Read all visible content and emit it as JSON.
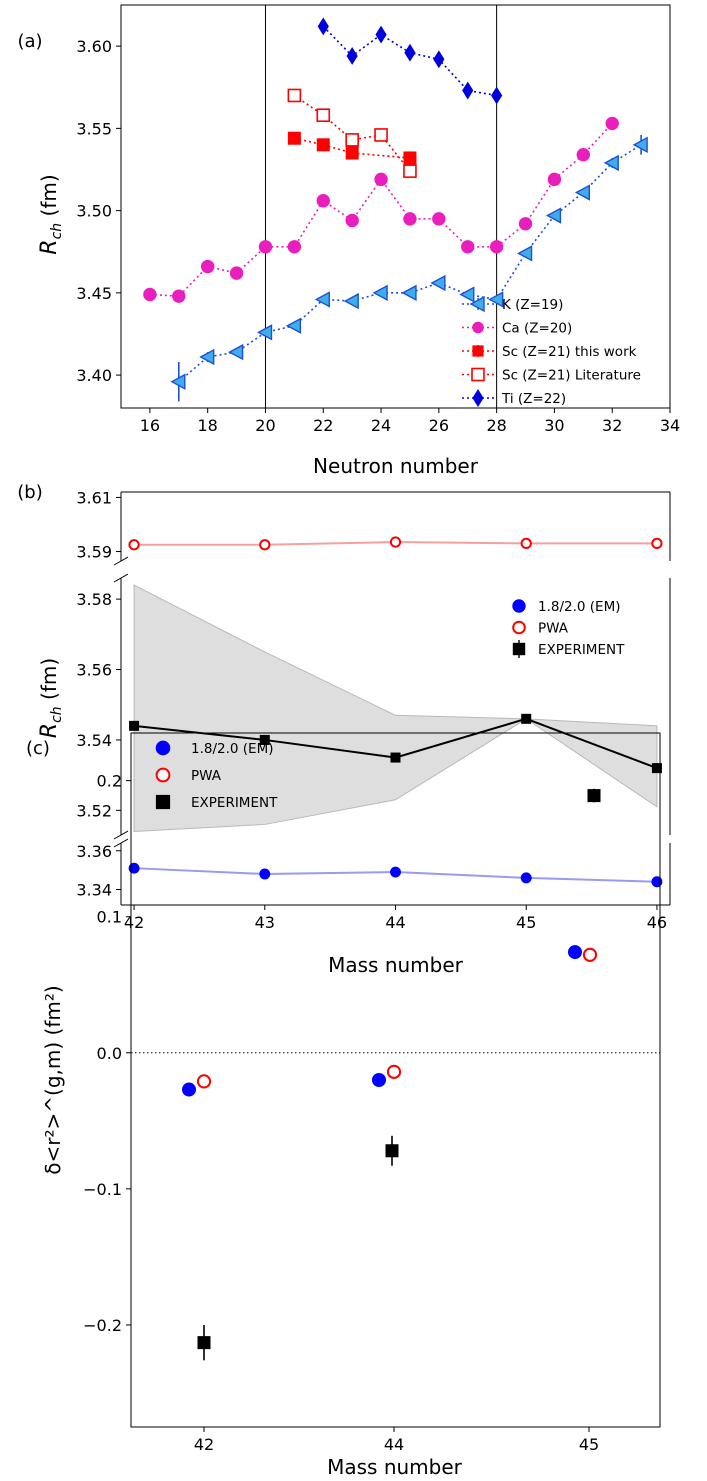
{
  "panels": {
    "a": "(a)",
    "b": "(b)",
    "c": "(c)"
  },
  "colors": {
    "K_face": "#3daee9",
    "K_edge": "#1f4fd8",
    "Ca": "#e91fbd",
    "Sc": "#ff0000",
    "Ti": "#0000dd",
    "em": "#0000ff",
    "em_line": "#9a9af0",
    "pwa": "#ff0000",
    "pwa_line": "#f5a0a0",
    "exp": "#000000",
    "band": "#dedede"
  },
  "chart_data": [
    {
      "type": "line",
      "panel": "a",
      "xlabel": "Neutron number",
      "ylabel": "R",
      "ylabel_sub": "ch",
      "ylabel_unit": " (fm)",
      "xlim": [
        15,
        34
      ],
      "ylim": [
        3.38,
        3.625
      ],
      "xticks": [
        "16",
        "18",
        "20",
        "22",
        "24",
        "26",
        "28",
        "30",
        "32",
        "34"
      ],
      "yticks": [
        "3.40",
        "3.45",
        "3.50",
        "3.55",
        "3.60"
      ],
      "vertical_lines": [
        20,
        28
      ],
      "legend_position": "lower-right",
      "series": [
        {
          "name": "K  (Z=19)",
          "marker": "triangle-left",
          "x": [
            17,
            18,
            19,
            20,
            21,
            22,
            23,
            24,
            25,
            26,
            27,
            28,
            29,
            30,
            31,
            32,
            33
          ],
          "y": [
            3.396,
            3.411,
            3.414,
            3.426,
            3.43,
            3.446,
            3.445,
            3.45,
            3.45,
            3.456,
            3.449,
            3.446,
            3.474,
            3.497,
            3.511,
            3.529,
            3.54
          ],
          "yerr": [
            0.012,
            0.003,
            0.002,
            0.002,
            0.002,
            0.002,
            0.002,
            0.002,
            0.002,
            0.002,
            0.002,
            0.002,
            0.002,
            0.002,
            0.002,
            0.003,
            0.006
          ]
        },
        {
          "name": "Ca (Z=20)",
          "marker": "circle",
          "x": [
            16,
            17,
            18,
            19,
            20,
            21,
            22,
            23,
            24,
            25,
            26,
            27,
            28,
            29,
            30,
            31,
            32
          ],
          "y": [
            3.449,
            3.448,
            3.466,
            3.462,
            3.478,
            3.478,
            3.506,
            3.494,
            3.519,
            3.495,
            3.495,
            3.478,
            3.478,
            3.492,
            3.519,
            3.534,
            3.553
          ],
          "yerr": []
        },
        {
          "name": "Sc (Z=21) this work",
          "marker": "square-filled",
          "x": [
            21,
            22,
            23,
            25
          ],
          "y": [
            3.544,
            3.54,
            3.535,
            3.532
          ],
          "yerr": [
            0.003,
            0.003,
            0.003,
            0.004
          ]
        },
        {
          "name": "Sc (Z=21) Literature",
          "marker": "square-open",
          "x": [
            21,
            22,
            23,
            24,
            25
          ],
          "y": [
            3.57,
            3.558,
            3.543,
            3.546,
            3.524
          ],
          "yerr": []
        },
        {
          "name": "Ti (Z=22)",
          "marker": "diamond",
          "x": [
            22,
            23,
            24,
            25,
            26,
            27,
            28
          ],
          "y": [
            3.612,
            3.594,
            3.607,
            3.596,
            3.592,
            3.573,
            3.57
          ],
          "yerr": []
        }
      ]
    },
    {
      "type": "line",
      "panel": "b",
      "xlabel": "Mass number",
      "ylabel": "R",
      "ylabel_sub": "ch",
      "ylabel_unit": " (fm)",
      "x": [
        42,
        43,
        44,
        45,
        46
      ],
      "xticks": [
        "42",
        "43",
        "44",
        "45",
        "46"
      ],
      "xlim": [
        41.9,
        46.1
      ],
      "broken_y_axis": true,
      "segments": [
        {
          "ylim": [
            3.5865,
            3.612
          ],
          "yticks": [
            "3.59",
            "3.61"
          ]
        },
        {
          "ylim": [
            3.513,
            3.586
          ],
          "yticks": [
            "3.52",
            "3.54",
            "3.56",
            "3.58"
          ]
        },
        {
          "ylim": [
            3.332,
            3.364
          ],
          "yticks": [
            "3.34",
            "3.36"
          ]
        }
      ],
      "legend_position": "right",
      "series": [
        {
          "name": "1.8/2.0 (EM)",
          "marker": "circle",
          "y": [
            3.351,
            3.348,
            3.349,
            3.346,
            3.344
          ]
        },
        {
          "name": "PWA",
          "marker": "circle-open",
          "y": [
            3.5925,
            3.5925,
            3.5935,
            3.593,
            3.593
          ]
        },
        {
          "name": "EXPERIMENT",
          "marker": "square",
          "y": [
            3.544,
            3.54,
            3.535,
            3.546,
            3.532
          ],
          "band_low": [
            3.514,
            3.516,
            3.523,
            3.546,
            3.521
          ],
          "band_high": [
            3.584,
            3.565,
            3.547,
            3.546,
            3.544
          ]
        }
      ]
    },
    {
      "type": "scatter",
      "panel": "c",
      "xlabel": "Mass number",
      "ylabel": "δ<r²>^(g,m) (fm²)",
      "categories": [
        "42",
        "44",
        "45"
      ],
      "ylim": [
        -0.275,
        0.235
      ],
      "yticks": [
        "−0.2",
        "−0.1",
        "0.0",
        "0.1",
        "0.2"
      ],
      "horizontal_dotted_line": 0.0,
      "legend_position": "top-left",
      "series": [
        {
          "name": "1.8/2.0 (EM)",
          "marker": "circle",
          "values": [
            -0.027,
            -0.02,
            0.074
          ]
        },
        {
          "name": "PWA",
          "marker": "circle-open",
          "values": [
            -0.021,
            -0.014,
            0.072
          ]
        },
        {
          "name": "EXPERIMENT",
          "marker": "square",
          "values": [
            -0.213,
            -0.072,
            0.189
          ],
          "yerr": [
            0.013,
            0.011,
            0.005
          ]
        }
      ]
    }
  ]
}
